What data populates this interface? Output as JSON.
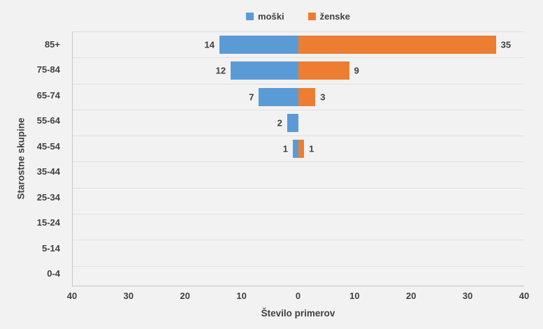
{
  "page": {
    "background_color": "#f2f2f2",
    "text_color": "#404040",
    "gridline_color": "#e0e0e0",
    "axis_line_color": "#c6c6c6"
  },
  "legend": {
    "items": [
      {
        "label": "moški",
        "color": "#5b9bd5"
      },
      {
        "label": "ženske",
        "color": "#ed7d31"
      }
    ]
  },
  "chart_data": {
    "type": "bar",
    "variant": "horizontal-diverging-pyramid",
    "title": "",
    "xlabel": "Število primerov",
    "ylabel": "Starostne skupine",
    "categories": [
      "85+",
      "75-84",
      "65-74",
      "55-64",
      "45-54",
      "35-44",
      "25-34",
      "15-24",
      "5-14",
      "0-4"
    ],
    "series": [
      {
        "name": "moški",
        "side": "left",
        "color": "#5b9bd5",
        "values": [
          14,
          12,
          7,
          2,
          1,
          0,
          0,
          0,
          0,
          0
        ]
      },
      {
        "name": "ženske",
        "side": "right",
        "color": "#ed7d31",
        "values": [
          35,
          9,
          3,
          0,
          1,
          0,
          0,
          0,
          0,
          0
        ]
      }
    ],
    "xlim": [
      -40,
      40
    ],
    "xticks": [
      "40",
      "30",
      "20",
      "10",
      "0",
      "10",
      "20",
      "30",
      "40"
    ],
    "grid": "horizontal-only",
    "legend_position": "top-center",
    "data_labels": "outside-end"
  }
}
